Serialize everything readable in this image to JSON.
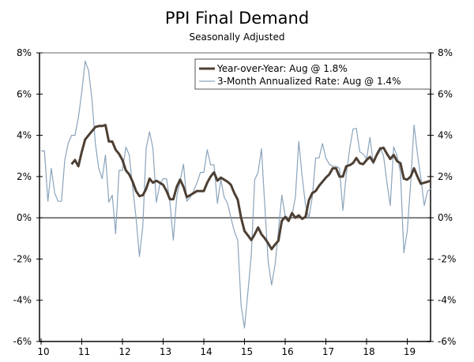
{
  "chart_data": {
    "type": "line",
    "title": "PPI Final Demand",
    "subtitle": "Seasonally Adjusted",
    "xlabel": "",
    "ylabel": "",
    "x_tick_labels": [
      "10",
      "11",
      "12",
      "13",
      "14",
      "15",
      "16",
      "17",
      "18",
      "19"
    ],
    "x_ticks": [
      2010,
      2011,
      2012,
      2013,
      2014,
      2015,
      2016,
      2017,
      2018,
      2019
    ],
    "xlim": [
      2010,
      2019.67
    ],
    "y_tick_labels": [
      "8%",
      "6%",
      "4%",
      "2%",
      "0%",
      "-2%",
      "-4%",
      "-6%"
    ],
    "y_ticks": [
      8,
      6,
      4,
      2,
      0,
      -2,
      -4,
      -6
    ],
    "ylim": [
      -6,
      8
    ],
    "grid": false,
    "zero_line": true,
    "legend_placement": "top-right",
    "series": [
      {
        "name": "Year-over-Year: Aug @ 1.8%",
        "color": "#4d3f33",
        "start_month": "2010-10",
        "frequency": "monthly",
        "values": [
          2.6,
          2.8,
          2.5,
          3.2,
          3.8,
          4.0,
          4.2,
          4.4,
          4.45,
          4.45,
          4.5,
          3.7,
          3.7,
          3.3,
          3.1,
          2.8,
          2.3,
          2.1,
          1.75,
          1.3,
          1.05,
          1.1,
          1.4,
          1.9,
          1.7,
          1.8,
          1.7,
          1.6,
          1.3,
          0.9,
          0.9,
          1.5,
          1.85,
          1.5,
          1.0,
          1.1,
          1.2,
          1.3,
          1.3,
          1.3,
          1.7,
          2.0,
          2.2,
          1.8,
          1.95,
          1.85,
          1.75,
          1.6,
          1.2,
          0.88,
          0.0,
          -0.64,
          -0.85,
          -1.08,
          -0.8,
          -0.47,
          -0.8,
          -1.0,
          -1.24,
          -1.52,
          -1.3,
          -1.12,
          -0.15,
          0.04,
          -0.15,
          0.23,
          0.0,
          0.12,
          -0.05,
          0.05,
          0.85,
          1.2,
          1.3,
          1.55,
          1.75,
          1.95,
          2.1,
          2.4,
          2.4,
          2.0,
          2.0,
          2.5,
          2.55,
          2.65,
          2.9,
          2.65,
          2.6,
          2.8,
          2.95,
          2.7,
          3.05,
          3.35,
          3.4,
          3.1,
          2.85,
          3.05,
          2.75,
          2.65,
          1.9,
          1.85,
          2.0,
          2.4,
          2.0,
          1.65,
          1.7,
          1.75,
          1.8
        ]
      },
      {
        "name": "3-Month Annualized Rate: Aug @ 1.4%",
        "color": "#8ba4bb",
        "start_month": "2010-01",
        "frequency": "monthly",
        "values": [
          3.24,
          3.24,
          0.8,
          2.4,
          1.2,
          0.8,
          0.8,
          2.8,
          3.6,
          4.0,
          4.0,
          4.85,
          6.1,
          7.6,
          7.15,
          5.74,
          3.6,
          2.4,
          1.9,
          3.05,
          0.75,
          1.1,
          -0.77,
          2.3,
          2.3,
          3.43,
          3.05,
          1.5,
          0.0,
          -1.88,
          -0.4,
          3.37,
          4.17,
          3.37,
          0.75,
          1.6,
          1.9,
          1.9,
          0.74,
          -1.08,
          1.0,
          1.8,
          2.6,
          0.8,
          1.0,
          1.3,
          1.7,
          2.2,
          2.2,
          3.3,
          2.57,
          2.57,
          0.7,
          1.85,
          1.0,
          0.7,
          0.0,
          -0.65,
          -1.08,
          -4.25,
          -5.35,
          -3.6,
          -1.8,
          1.85,
          2.2,
          3.35,
          0.5,
          -2.14,
          -3.26,
          -2.3,
          -0.65,
          1.1,
          0.1,
          0.0,
          0.1,
          1.0,
          3.7,
          2.0,
          0.6,
          0.0,
          1.0,
          2.9,
          2.9,
          3.6,
          2.9,
          2.6,
          2.5,
          2.5,
          2.4,
          0.36,
          2.1,
          3.3,
          4.3,
          4.33,
          3.2,
          3.1,
          2.85,
          3.9,
          2.6,
          3.15,
          3.43,
          3.0,
          1.7,
          0.6,
          3.45,
          3.0,
          2.2,
          -1.7,
          -0.65,
          1.67,
          4.5,
          3.1,
          1.95,
          0.6,
          1.3,
          1.4
        ]
      }
    ]
  }
}
